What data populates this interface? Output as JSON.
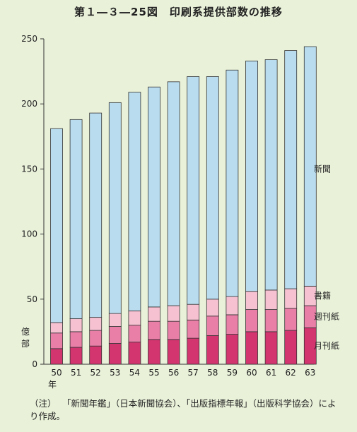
{
  "title": "第１―３―25図　印刷系提供部数の推移",
  "note_lead": "（注）",
  "note_text": "「新聞年鑑」（日本新聞協会）、「出版指標年報」（出版科学協会）により作成。",
  "colors": {
    "background": "#e9f1d9",
    "newspaper": "#b9ddef",
    "books": "#f6c2d2",
    "weekly": "#e97fa7",
    "monthly": "#d3356f",
    "outline": "#333333"
  },
  "chart_data": {
    "type": "bar",
    "stacked": true,
    "categories": [
      "50",
      "51",
      "52",
      "53",
      "54",
      "55",
      "56",
      "57",
      "58",
      "59",
      "60",
      "61",
      "62",
      "63"
    ],
    "x_unit_label": "年",
    "y_unit_label": [
      "億",
      "部"
    ],
    "ylim": [
      0,
      250
    ],
    "yticks": [
      0,
      50,
      100,
      150,
      200,
      250
    ],
    "grid": false,
    "legend": "direct labels at right of last bar",
    "series": [
      {
        "name": "月刊紙",
        "values": [
          12,
          13,
          14,
          16,
          17,
          19,
          19,
          20,
          22,
          23,
          25,
          25,
          26,
          28
        ]
      },
      {
        "name": "週刊紙",
        "values": [
          12,
          12,
          12,
          13,
          13,
          14,
          14,
          14,
          15,
          15,
          17,
          17,
          17,
          17
        ]
      },
      {
        "name": "書籍",
        "values": [
          8,
          10,
          10,
          10,
          11,
          11,
          12,
          12,
          13,
          14,
          14,
          15,
          15,
          15
        ]
      },
      {
        "name": "新聞",
        "values": [
          149,
          153,
          157,
          162,
          168,
          169,
          172,
          175,
          171,
          174,
          177,
          177,
          183,
          184
        ]
      }
    ]
  }
}
